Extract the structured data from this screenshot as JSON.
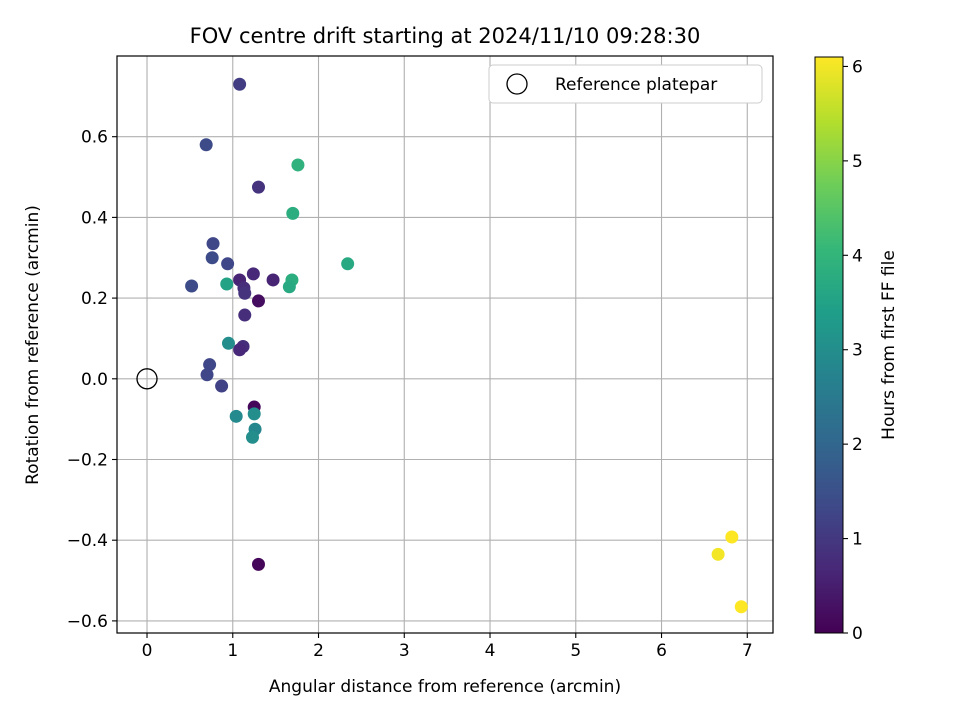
{
  "chart_data": {
    "type": "scatter",
    "title": "FOV centre drift starting at 2024/11/10 09:28:30",
    "xlabel": "Angular distance from reference (arcmin)",
    "ylabel": "Rotation from reference (arcmin)",
    "xlim": [
      -0.35,
      7.3
    ],
    "ylim": [
      -0.63,
      0.8
    ],
    "xticks": [
      0,
      1,
      2,
      3,
      4,
      5,
      6,
      7
    ],
    "yticks": [
      -0.6,
      -0.4,
      -0.2,
      0.0,
      0.2,
      0.4,
      0.6
    ],
    "xtick_labels": [
      "0",
      "1",
      "2",
      "3",
      "4",
      "5",
      "6",
      "7"
    ],
    "ytick_labels": [
      "−0.6",
      "−0.4",
      "−0.2",
      "0.0",
      "0.2",
      "0.4",
      "0.6"
    ],
    "grid": true,
    "legend": {
      "label": "Reference platepar",
      "placement": "top-right"
    },
    "reference_point": {
      "x": 0.0,
      "y": 0.0
    },
    "colorbar": {
      "label": "Hours from first FF file",
      "colormap": "viridis",
      "range": [
        0,
        6.1
      ],
      "ticks": [
        0,
        1,
        2,
        3,
        4,
        5,
        6
      ],
      "tick_labels": [
        "0",
        "1",
        "2",
        "3",
        "4",
        "5",
        "6"
      ]
    },
    "series": [
      {
        "points": [
          {
            "x": 1.08,
            "y": 0.73,
            "h": 1.1
          },
          {
            "x": 0.69,
            "y": 0.58,
            "h": 1.4
          },
          {
            "x": 1.3,
            "y": 0.475,
            "h": 0.9
          },
          {
            "x": 1.76,
            "y": 0.53,
            "h": 3.9
          },
          {
            "x": 1.7,
            "y": 0.41,
            "h": 3.8
          },
          {
            "x": 2.34,
            "y": 0.285,
            "h": 3.7
          },
          {
            "x": 0.77,
            "y": 0.335,
            "h": 1.3
          },
          {
            "x": 0.76,
            "y": 0.3,
            "h": 1.4
          },
          {
            "x": 0.94,
            "y": 0.285,
            "h": 1.3
          },
          {
            "x": 1.08,
            "y": 0.245,
            "h": 0.6
          },
          {
            "x": 1.24,
            "y": 0.26,
            "h": 0.7
          },
          {
            "x": 1.47,
            "y": 0.245,
            "h": 0.6
          },
          {
            "x": 1.69,
            "y": 0.245,
            "h": 3.8
          },
          {
            "x": 1.66,
            "y": 0.228,
            "h": 3.7
          },
          {
            "x": 0.93,
            "y": 0.235,
            "h": 3.5
          },
          {
            "x": 1.13,
            "y": 0.225,
            "h": 0.8
          },
          {
            "x": 1.14,
            "y": 0.212,
            "h": 0.9
          },
          {
            "x": 0.52,
            "y": 0.23,
            "h": 1.4
          },
          {
            "x": 1.3,
            "y": 0.193,
            "h": 0.2
          },
          {
            "x": 1.14,
            "y": 0.158,
            "h": 0.8
          },
          {
            "x": 0.95,
            "y": 0.088,
            "h": 3.0
          },
          {
            "x": 1.12,
            "y": 0.08,
            "h": 0.8
          },
          {
            "x": 1.08,
            "y": 0.072,
            "h": 0.7
          },
          {
            "x": 0.73,
            "y": 0.035,
            "h": 1.3
          },
          {
            "x": 0.7,
            "y": 0.01,
            "h": 1.3
          },
          {
            "x": 0.87,
            "y": -0.018,
            "h": 1.2
          },
          {
            "x": 1.25,
            "y": -0.07,
            "h": 0.1
          },
          {
            "x": 1.04,
            "y": -0.093,
            "h": 2.9
          },
          {
            "x": 1.25,
            "y": -0.087,
            "h": 3.0
          },
          {
            "x": 1.26,
            "y": -0.125,
            "h": 2.8
          },
          {
            "x": 1.23,
            "y": -0.145,
            "h": 3.0
          },
          {
            "x": 1.3,
            "y": -0.46,
            "h": 0.1
          },
          {
            "x": 6.82,
            "y": -0.392,
            "h": 6.1
          },
          {
            "x": 6.66,
            "y": -0.435,
            "h": 6.0
          },
          {
            "x": 6.93,
            "y": -0.565,
            "h": 6.1
          }
        ]
      }
    ]
  }
}
